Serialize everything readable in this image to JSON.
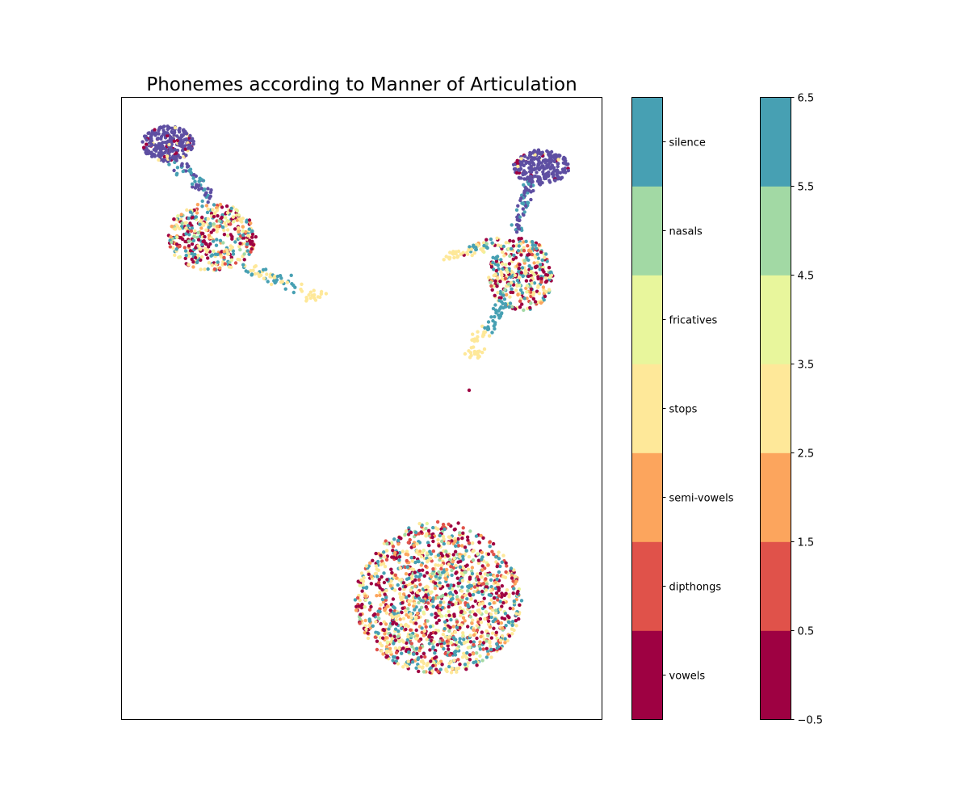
{
  "chart_data": {
    "type": "scatter",
    "title": "Phonemes according to Manner of Articulation",
    "xlabel": "",
    "ylabel": "",
    "x_ticks_shown": false,
    "y_ticks_shown": false,
    "grid": false,
    "point_count_note": "",
    "colors": {
      "vowels": "#9e0142",
      "dipthongs": "#e0524a",
      "semi-vowels": "#fca55d",
      "stops": "#fee899",
      "fricatives": "#e8f69c",
      "nasals": "#a2d9a4",
      "silence": "#47a0b3",
      "cluster_head": "#5e4fa2"
    },
    "categories": [
      "vowels",
      "dipthongs",
      "semi-vowels",
      "stops",
      "fricatives",
      "nasals",
      "silence"
    ],
    "clusters": [
      {
        "label": "top-left",
        "head_center": [
          0.1,
          0.92
        ],
        "body_center": [
          0.18,
          0.75
        ],
        "tail_end": [
          0.4,
          0.67
        ]
      },
      {
        "label": "top-right",
        "head_center": [
          0.88,
          0.88
        ],
        "body_center": [
          0.82,
          0.73
        ],
        "tail_end": [
          0.73,
          0.58
        ]
      },
      {
        "label": "bottom",
        "center": [
          0.66,
          0.19
        ],
        "rx": 0.3,
        "ry": 0.15
      }
    ],
    "colorbar_categorical": {
      "labels": [
        "vowels",
        "dipthongs",
        "semi-vowels",
        "stops",
        "fricatives",
        "nasals",
        "silence"
      ]
    },
    "colorbar_numeric": {
      "range": [
        -0.5,
        6.5
      ],
      "ticks": [
        "−0.5",
        "0.5",
        "1.5",
        "2.5",
        "3.5",
        "4.5",
        "5.5",
        "6.5"
      ]
    }
  }
}
